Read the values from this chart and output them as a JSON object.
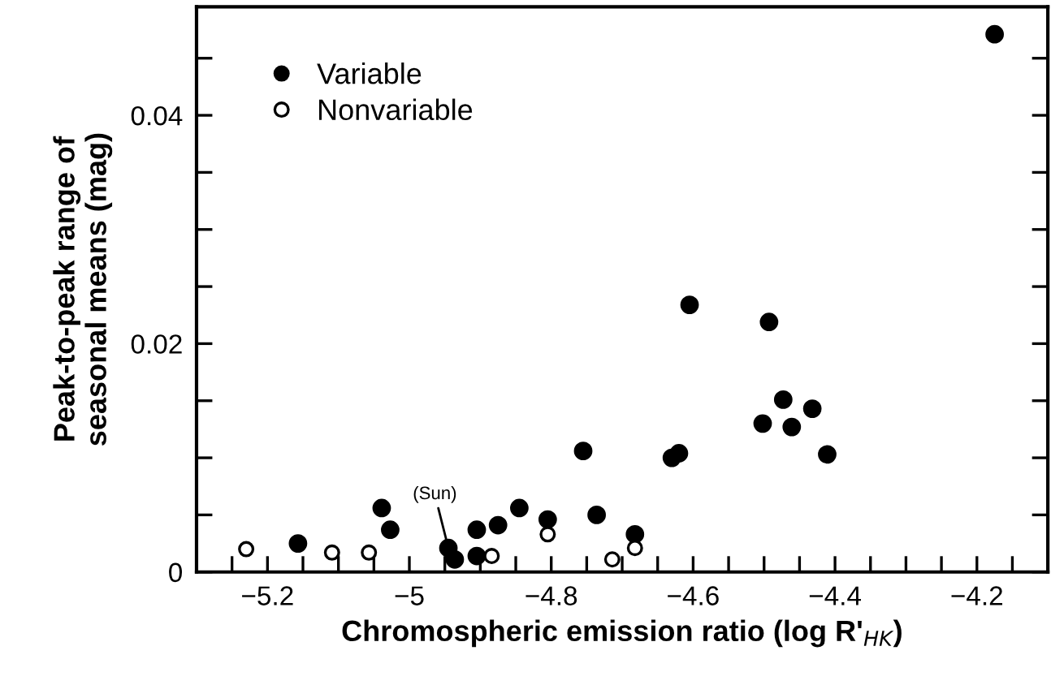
{
  "chart_data": {
    "type": "scatter",
    "xlabel": "Chromospheric emission ratio (log R'$_{HK}$)",
    "ylabel": "Peak-to-peak range of\nseasonal means (mag)",
    "xlim": [
      -5.3,
      -4.1
    ],
    "ylim": [
      0,
      0.0495
    ],
    "xticks": [
      {
        "value": -5.25,
        "label": null
      },
      -5.2,
      {
        "value": -5.15,
        "label": null
      },
      {
        "value": -5.1,
        "label": null
      },
      {
        "value": -5.05,
        "label": null
      },
      -5,
      {
        "value": -4.95,
        "label": null
      },
      {
        "value": -4.9,
        "label": null
      },
      {
        "value": -4.85,
        "label": null
      },
      -4.8,
      {
        "value": -4.75,
        "label": null
      },
      {
        "value": -4.7,
        "label": null
      },
      {
        "value": -4.65,
        "label": null
      },
      -4.6,
      {
        "value": -4.55,
        "label": null
      },
      {
        "value": -4.5,
        "label": null
      },
      {
        "value": -4.45,
        "label": null
      },
      -4.4,
      {
        "value": -4.35,
        "label": null
      },
      {
        "value": -4.3,
        "label": null
      },
      {
        "value": -4.25,
        "label": null
      },
      -4.2,
      {
        "value": -4.15,
        "label": null
      }
    ],
    "yticks": [
      0,
      {
        "value": 0.005,
        "label": null
      },
      {
        "value": 0.01,
        "label": null
      },
      {
        "value": 0.015,
        "label": null
      },
      0.02,
      {
        "value": 0.025,
        "label": null
      },
      {
        "value": 0.03,
        "label": null
      },
      {
        "value": 0.035,
        "label": null
      },
      0.04,
      {
        "value": 0.045,
        "label": null
      }
    ],
    "grid": false,
    "legend": "top left",
    "marker": "circle",
    "annotations": [
      {
        "text": "(Sun)",
        "x": -4.945,
        "y": 0.0021
      }
    ],
    "series": [
      {
        "name": "Variable",
        "color": "#000000",
        "x": [
          -4.175,
          -4.605,
          -4.493,
          -4.473,
          -4.432,
          -4.502,
          -4.461,
          -4.411,
          -4.63,
          -4.62,
          -4.755,
          -5.157,
          -5.039,
          -5.027,
          -4.945,
          -4.936,
          -4.905,
          -4.905,
          -4.875,
          -4.845,
          -4.805,
          -4.736,
          -4.682
        ],
        "values": [
          0.0471,
          0.0234,
          0.0219,
          0.0151,
          0.0143,
          0.013,
          0.0127,
          0.0103,
          0.01,
          0.0104,
          0.0106,
          0.0025,
          0.0056,
          0.0037,
          0.0021,
          0.0011,
          0.0037,
          0.0014,
          0.0041,
          0.0056,
          0.0046,
          0.005,
          0.0033
        ]
      },
      {
        "name": "Nonvariable",
        "color": "#ffffff",
        "x": [
          -5.23,
          -5.109,
          -5.057,
          -4.884,
          -4.805,
          -4.714,
          -4.682
        ],
        "values": [
          0.002,
          0.0017,
          0.0017,
          0.0014,
          0.0033,
          0.0011,
          0.0021
        ]
      }
    ]
  }
}
